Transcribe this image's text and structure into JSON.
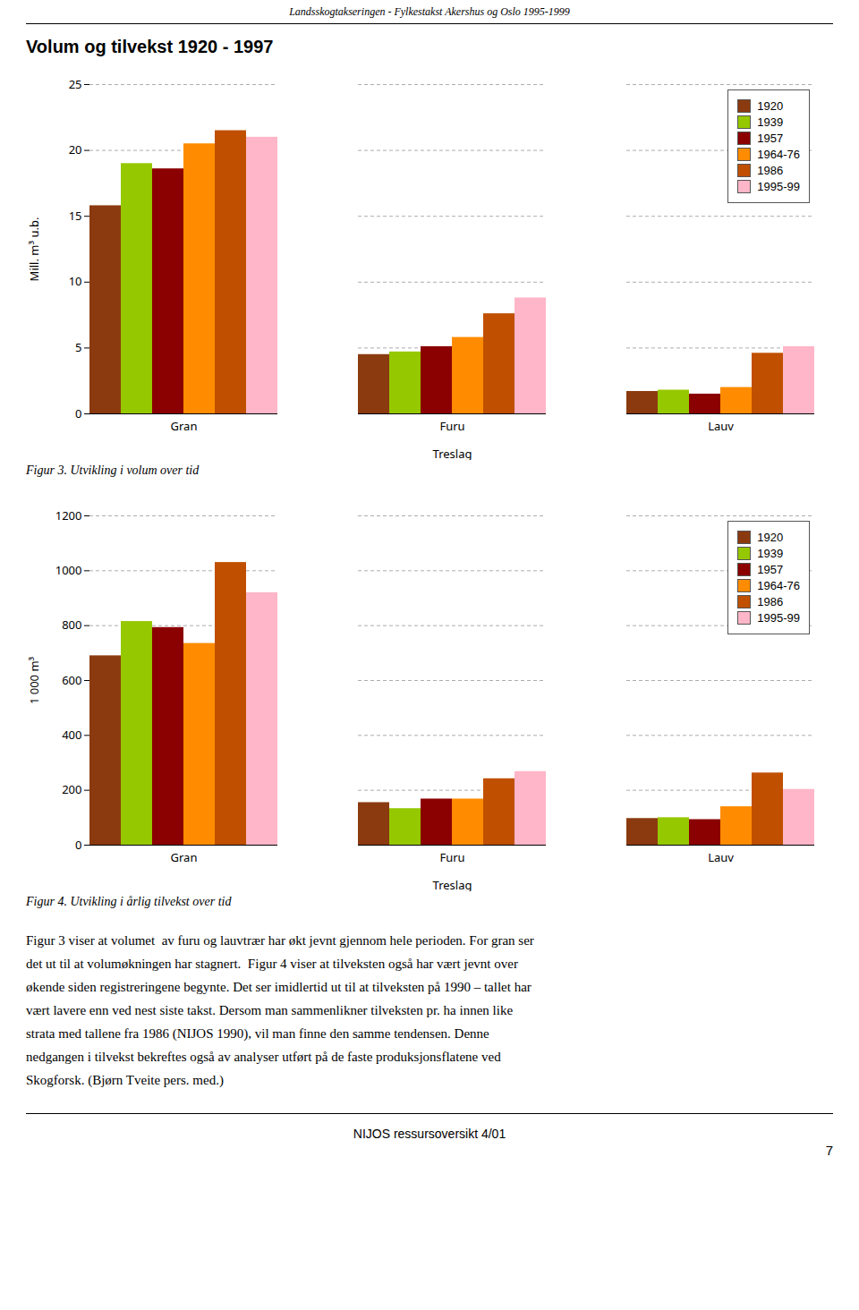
{
  "page_title": "Landsskogtakseringen - Fylkestakst Akershus og Oslo 1995-1999",
  "title": "Volum og tilvekst 1920 - 1997",
  "chart_data": [
    {
      "type": "bar",
      "title": "Figur 3. Utvikling i volum over tid",
      "categories": [
        "Gran",
        "Furu",
        "Lauv"
      ],
      "xlabel": "Treslag",
      "ylabel": "Mill. m³ u.b.",
      "ylim": [
        0,
        25
      ],
      "yticks": [
        0,
        5,
        10,
        15,
        20,
        25
      ],
      "grid": true,
      "legend": "upper right",
      "series": [
        {
          "name": "1920",
          "color": "#8B3A0F",
          "values": [
            15.8,
            4.5,
            1.7
          ]
        },
        {
          "name": "1939",
          "color": "#96C800",
          "values": [
            19.0,
            4.7,
            1.8
          ]
        },
        {
          "name": "1957",
          "color": "#8B0000",
          "values": [
            18.6,
            5.1,
            1.5
          ]
        },
        {
          "name": "1964-76",
          "color": "#FF8C00",
          "values": [
            20.5,
            5.8,
            2.0
          ]
        },
        {
          "name": "1986",
          "color": "#C05000",
          "values": [
            21.5,
            7.6,
            4.6
          ]
        },
        {
          "name": "1995-99",
          "color": "#FFB6C8",
          "values": [
            21.0,
            8.8,
            5.1
          ]
        }
      ]
    },
    {
      "type": "bar",
      "title": "Figur 4. Utvikling i årlig tilvekst over tid",
      "categories": [
        "Gran",
        "Furu",
        "Lauv"
      ],
      "xlabel": "Treslag",
      "ylabel": "1 000 m³",
      "ylim": [
        0,
        1200
      ],
      "yticks": [
        0,
        200,
        400,
        600,
        800,
        1000,
        1200
      ],
      "grid": true,
      "legend": "upper right",
      "series": [
        {
          "name": "1920",
          "color": "#8B3A0F",
          "values": [
            690,
            155,
            97
          ]
        },
        {
          "name": "1939",
          "color": "#96C800",
          "values": [
            815,
            133,
            100
          ]
        },
        {
          "name": "1957",
          "color": "#8B0000",
          "values": [
            793,
            168,
            93
          ]
        },
        {
          "name": "1964-76",
          "color": "#FF8C00",
          "values": [
            735,
            168,
            140
          ]
        },
        {
          "name": "1986",
          "color": "#C05000",
          "values": [
            1030,
            242,
            263
          ]
        },
        {
          "name": "1995-99",
          "color": "#FFB6C8",
          "values": [
            920,
            268,
            203
          ]
        }
      ]
    }
  ],
  "body_text": [
    "Figur 3 viser at volumet  av furu og lauvtrær har økt jevnt gjennom hele perioden. For gran ser",
    "det ut til at volumøkningen har stagnert.  Figur 4 viser at tilveksten også har vært jevnt over",
    "økende siden registreringene begynte. Det ser imidlertid ut til at tilveksten på 1990 – tallet har",
    "vært lavere enn ved nest siste takst. Dersom man sammenlikner tilveksten pr. ha innen like",
    "strata med tallene fra 1986 (NIJOS 1990), vil man finne den samme tendensen. Denne",
    "nedgangen i tilvekst bekreftes også av analyser utført på de faste produksjonsflatene ved",
    "Skogforsk. (Bjørn Tveite pers. med.)"
  ],
  "footer": "NIJOS ressursoversikt 4/01",
  "page_number": "7"
}
